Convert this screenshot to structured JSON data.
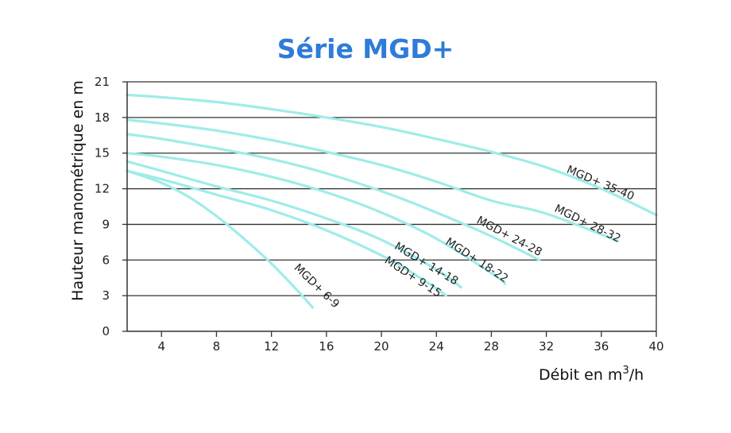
{
  "chart_data": {
    "type": "line",
    "title": "Série MGD+",
    "xlabel": "Débit en m",
    "xlabel_sup": "3",
    "xlabel_suffix": "/h",
    "ylabel": "Hauteur manométrique en m",
    "xlim": [
      1.5,
      40
    ],
    "ylim": [
      0,
      21
    ],
    "x_ticks": [
      4,
      8,
      12,
      16,
      20,
      24,
      28,
      32,
      36,
      40
    ],
    "y_ticks": [
      0,
      3,
      6,
      9,
      12,
      15,
      18,
      21
    ],
    "grid": "horizontal",
    "line_color": "#9fece9",
    "series": [
      {
        "name": "MGD+ 6-9",
        "x": [
          1.5,
          4,
          6,
          8,
          10,
          12,
          14,
          15
        ],
        "y": [
          13.5,
          12.5,
          11.3,
          9.7,
          7.8,
          5.7,
          3.3,
          2.0
        ]
      },
      {
        "name": "MGD+ 9-15",
        "x": [
          1.5,
          4,
          8,
          12,
          16,
          20,
          22,
          24,
          24.7
        ],
        "y": [
          13.5,
          12.8,
          11.5,
          10.2,
          8.5,
          6.4,
          5.1,
          3.6,
          3.0
        ]
      },
      {
        "name": "MGD+ 14-18",
        "x": [
          1.5,
          4,
          8,
          12,
          16,
          20,
          24,
          25.8
        ],
        "y": [
          14.3,
          13.5,
          12.2,
          11.0,
          9.5,
          7.7,
          5.2,
          3.7
        ]
      },
      {
        "name": "MGD+ 18-22",
        "x": [
          1.5,
          4,
          8,
          12,
          16,
          20,
          24,
          28,
          29
        ],
        "y": [
          15.0,
          14.7,
          14.0,
          13.0,
          11.7,
          10.0,
          7.8,
          4.9,
          4.0
        ]
      },
      {
        "name": "MGD+ 24-28",
        "x": [
          1.5,
          4,
          8,
          12,
          16,
          20,
          24,
          28,
          31.5
        ],
        "y": [
          16.6,
          16.2,
          15.4,
          14.5,
          13.3,
          11.8,
          10.0,
          8.0,
          6.0
        ]
      },
      {
        "name": "MGD+ 28-32",
        "x": [
          1.5,
          4,
          8,
          12,
          16,
          20,
          24,
          28,
          32,
          37.2
        ],
        "y": [
          17.8,
          17.5,
          16.9,
          16.1,
          15.1,
          14.0,
          12.6,
          11.0,
          9.9,
          7.6
        ]
      },
      {
        "name": "MGD+ 35-40",
        "x": [
          1.5,
          4,
          8,
          12,
          16,
          20,
          24,
          28,
          32,
          36,
          40
        ],
        "y": [
          19.9,
          19.7,
          19.3,
          18.7,
          18.0,
          17.2,
          16.2,
          15.1,
          13.8,
          12.0,
          9.8
        ]
      }
    ]
  }
}
